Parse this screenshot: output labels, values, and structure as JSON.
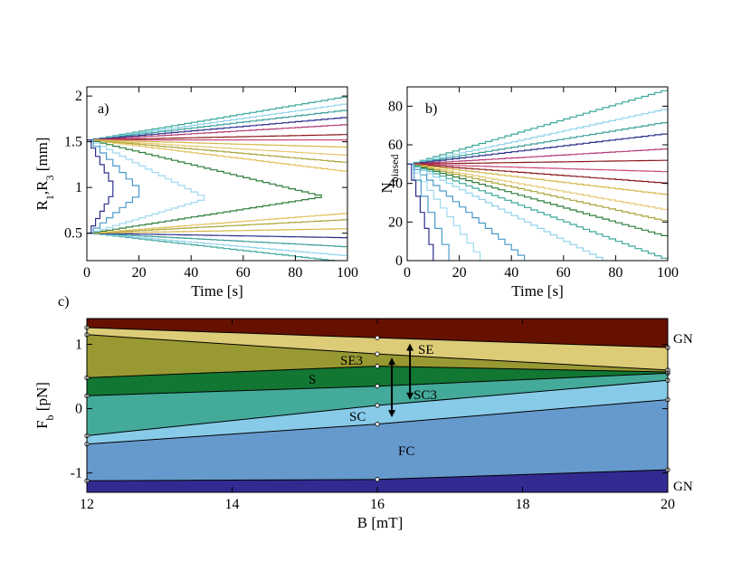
{
  "chart_data": [
    {
      "id": "a",
      "type": "line",
      "panel_label": "a)",
      "xlabel": "Time [s]",
      "ylabel": "R",
      "ylabel_sub1": "1",
      "ylabel_sep": ",R",
      "ylabel_sub2": "3",
      "ylabel_unit": " [mm]",
      "xlim": [
        0,
        100
      ],
      "ylim": [
        0.2,
        2.1
      ],
      "xticks": [
        0,
        20,
        40,
        60,
        80,
        100
      ],
      "xtick_labels": [
        "0",
        "20",
        "40",
        "60",
        "80",
        "100"
      ],
      "yticks": [
        0.5,
        1,
        1.5,
        2
      ],
      "ytick_labels": [
        "0.5",
        "1",
        "1.5",
        "2"
      ],
      "series": [
        {
          "name": "a-upper-1",
          "color": "#3aa89a",
          "t_end": 100,
          "start": 1.52,
          "end": 2.0
        },
        {
          "name": "a-upper-2",
          "color": "#8fd3ec",
          "t_end": 100,
          "start": 1.52,
          "end": 1.92
        },
        {
          "name": "a-upper-3",
          "color": "#3a9e99",
          "t_end": 100,
          "start": 1.52,
          "end": 1.85
        },
        {
          "name": "a-upper-4",
          "color": "#2b2f8c",
          "t_end": 100,
          "start": 1.52,
          "end": 1.77
        },
        {
          "name": "a-upper-5",
          "color": "#b23a76",
          "t_end": 100,
          "start": 1.52,
          "end": 1.69
        },
        {
          "name": "a-upper-6",
          "color": "#8b1a1a",
          "t_end": 100,
          "start": 1.52,
          "end": 1.58
        },
        {
          "name": "a-upper-7",
          "color": "#c74a7a",
          "t_end": 100,
          "start": 1.52,
          "end": 1.52
        },
        {
          "name": "a-upper-8",
          "color": "#d4b84a",
          "t_end": 100,
          "start": 1.52,
          "end": 1.44
        },
        {
          "name": "a-upper-9",
          "color": "#e6c873",
          "t_end": 100,
          "start": 1.52,
          "end": 1.35
        },
        {
          "name": "a-upper-10",
          "color": "#a9a43a",
          "t_end": 100,
          "start": 1.52,
          "end": 1.27
        },
        {
          "name": "a-upper-11",
          "color": "#e2c05a",
          "t_end": 100,
          "start": 1.52,
          "end": 1.17
        },
        {
          "name": "a-upper-12",
          "color": "#2e7d3a",
          "t_end": 90,
          "start": 1.52,
          "end": 0.9
        },
        {
          "name": "a-lower-1",
          "color": "#3aa89a",
          "t_end": 100,
          "start": 0.5,
          "end": 0.18
        },
        {
          "name": "a-lower-2",
          "color": "#8fd3ec",
          "t_end": 100,
          "start": 0.5,
          "end": 0.25
        },
        {
          "name": "a-lower-3",
          "color": "#3a9e99",
          "t_end": 100,
          "start": 0.5,
          "end": 0.35
        },
        {
          "name": "a-lower-4",
          "color": "#2b2f8c",
          "t_end": 100,
          "start": 0.5,
          "end": 0.45
        },
        {
          "name": "a-lower-5",
          "color": "#d4b84a",
          "t_end": 100,
          "start": 0.5,
          "end": 0.55
        },
        {
          "name": "a-lower-6",
          "color": "#a9a43a",
          "t_end": 100,
          "start": 0.5,
          "end": 0.65
        },
        {
          "name": "a-lower-7",
          "color": "#e2c05a",
          "t_end": 100,
          "start": 0.5,
          "end": 0.72
        },
        {
          "name": "a-lower-8",
          "color": "#2e7d3a",
          "t_end": 90,
          "start": 0.5,
          "end": 0.9
        },
        {
          "name": "a-lower-9",
          "color": "#9ed9ef",
          "t_end": 45,
          "start": 0.5,
          "end": 0.88
        },
        {
          "name": "a-lower-10",
          "color": "#4a9acb",
          "t_end": 20,
          "start": 0.5,
          "end": 0.95
        },
        {
          "name": "a-upper-13",
          "color": "#9ed9ef",
          "t_end": 45,
          "start": 1.52,
          "end": 0.88
        },
        {
          "name": "a-upper-14",
          "color": "#4a9acb",
          "t_end": 20,
          "start": 1.52,
          "end": 0.95
        },
        {
          "name": "a-vert-1",
          "color": "#2b2f8c",
          "t_end": 10,
          "start": 1.52,
          "end": 0.98
        },
        {
          "name": "a-vert-2",
          "color": "#2b2f8c",
          "t_end": 10,
          "start": 0.5,
          "end": 0.98
        }
      ]
    },
    {
      "id": "b",
      "type": "line",
      "panel_label": "b)",
      "xlabel": "Time [s]",
      "ylabel": "N",
      "ylabel_sub": "biased",
      "xlim": [
        0,
        100
      ],
      "ylim": [
        0,
        90
      ],
      "xticks": [
        0,
        20,
        40,
        60,
        80,
        100
      ],
      "xtick_labels": [
        "0",
        "20",
        "40",
        "60",
        "80",
        "100"
      ],
      "yticks": [
        0,
        20,
        40,
        60,
        80
      ],
      "ytick_labels": [
        "0",
        "20",
        "40",
        "60",
        "80"
      ],
      "series": [
        {
          "name": "b-1",
          "color": "#3aa89a",
          "t_end": 100,
          "start": 50,
          "end": 89
        },
        {
          "name": "b-2",
          "color": "#8fd3ec",
          "t_end": 100,
          "start": 50,
          "end": 79
        },
        {
          "name": "b-3",
          "color": "#3a9e99",
          "t_end": 100,
          "start": 50,
          "end": 72
        },
        {
          "name": "b-4",
          "color": "#2b2f8c",
          "t_end": 100,
          "start": 50,
          "end": 66
        },
        {
          "name": "b-5",
          "color": "#b23a76",
          "t_end": 100,
          "start": 50,
          "end": 58
        },
        {
          "name": "b-6",
          "color": "#8b1a1a",
          "t_end": 100,
          "start": 50,
          "end": 52
        },
        {
          "name": "b-7",
          "color": "#c74a7a",
          "t_end": 100,
          "start": 50,
          "end": 46
        },
        {
          "name": "b-8",
          "color": "#8b1a1a",
          "t_end": 100,
          "start": 50,
          "end": 40
        },
        {
          "name": "b-9",
          "color": "#d4b84a",
          "t_end": 100,
          "start": 50,
          "end": 34
        },
        {
          "name": "b-10",
          "color": "#e6c873",
          "t_end": 100,
          "start": 50,
          "end": 26
        },
        {
          "name": "b-11",
          "color": "#a9a43a",
          "t_end": 100,
          "start": 50,
          "end": 20
        },
        {
          "name": "b-12",
          "color": "#2e7d3a",
          "t_end": 100,
          "start": 50,
          "end": 12
        },
        {
          "name": "b-13",
          "color": "#3aa89a",
          "t_end": 100,
          "start": 50,
          "end": 0
        },
        {
          "name": "b-14",
          "color": "#8fd3ec",
          "t_end": 75,
          "start": 50,
          "end": 0
        },
        {
          "name": "b-15",
          "color": "#4a9acb",
          "t_end": 45,
          "start": 50,
          "end": 0
        },
        {
          "name": "b-16",
          "color": "#9ed9ef",
          "t_end": 28,
          "start": 50,
          "end": 0
        },
        {
          "name": "b-17",
          "color": "#4a9acb",
          "t_end": 16,
          "start": 50,
          "end": 0
        },
        {
          "name": "b-18",
          "color": "#2b2f8c",
          "t_end": 10,
          "start": 50,
          "end": 0
        }
      ]
    },
    {
      "id": "c",
      "type": "area",
      "panel_label": "c)",
      "xlabel": "B [mT]",
      "ylabel": "F",
      "ylabel_sub": "b",
      "ylabel_unit": " [pN]",
      "xlim": [
        12,
        20
      ],
      "ylim": [
        -1.3,
        1.4
      ],
      "xticks": [
        12,
        14,
        16,
        18,
        20
      ],
      "xtick_labels": [
        "12",
        "14",
        "16",
        "18",
        "20"
      ],
      "yticks": [
        -1,
        0,
        1
      ],
      "ytick_labels": [
        "-1",
        "0",
        "1"
      ],
      "x": [
        12,
        16,
        20
      ],
      "boundaries": [
        {
          "name": "GN-bottom",
          "values": [
            -1.12,
            -1.1,
            -0.95
          ]
        },
        {
          "name": "FC-SC",
          "values": [
            -0.55,
            -0.24,
            0.14
          ]
        },
        {
          "name": "SC-SC3",
          "values": [
            -0.42,
            0.05,
            0.44
          ]
        },
        {
          "name": "SC3-S",
          "values": [
            0.2,
            0.35,
            0.55
          ]
        },
        {
          "name": "S-SE3",
          "values": [
            0.48,
            0.66,
            0.57
          ]
        },
        {
          "name": "SE3-SE",
          "values": [
            1.15,
            0.85,
            0.6
          ]
        },
        {
          "name": "SE-GN",
          "values": [
            1.26,
            1.1,
            0.95
          ]
        }
      ],
      "regions": [
        {
          "name": "GN-low",
          "label": "",
          "color": "#332a91",
          "lower": null,
          "upper": "GN-bottom"
        },
        {
          "name": "FC",
          "label": "FC",
          "color": "#6699cc",
          "lower": "GN-bottom",
          "upper": "FC-SC"
        },
        {
          "name": "SC",
          "label": "SC",
          "color": "#88cbe9",
          "lower": "FC-SC",
          "upper": "SC-SC3"
        },
        {
          "name": "SC3",
          "label": "SC3",
          "color": "#44aa99",
          "lower": "SC-SC3",
          "upper": "SC3-S"
        },
        {
          "name": "S",
          "label": "S",
          "color": "#117733",
          "lower": "SC3-S",
          "upper": "S-SE3"
        },
        {
          "name": "SE3",
          "label": "SE3",
          "color": "#999933",
          "lower": "S-SE3",
          "upper": "SE3-SE"
        },
        {
          "name": "SE",
          "label": "SE",
          "color": "#ddcc77",
          "lower": "SE3-SE",
          "upper": "SE-GN"
        },
        {
          "name": "GN-high",
          "label": "",
          "color": "#661100",
          "lower": "SE-GN",
          "upper": null
        }
      ],
      "labels": {
        "GN_top": "GN",
        "GN_bottom": "GN",
        "FC": "FC",
        "SC": "SC",
        "SC3": "SC3",
        "S": "S",
        "SE3": "SE3",
        "SE": "SE"
      },
      "arrows": [
        {
          "name": "arrow-1",
          "x": 16.2,
          "y1": 0.78,
          "y2": -0.12
        },
        {
          "name": "arrow-2",
          "x": 16.45,
          "y1": 1.0,
          "y2": 0.15
        }
      ]
    }
  ]
}
